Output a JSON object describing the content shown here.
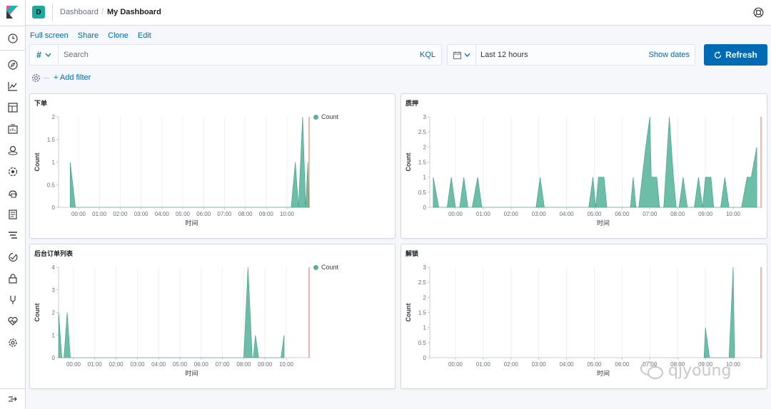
{
  "topbar": {
    "space_initial": "D",
    "breadcrumb_parent": "Dashboard",
    "breadcrumb_current": "My Dashboard"
  },
  "actions": [
    "Full screen",
    "Share",
    "Clone",
    "Edit"
  ],
  "query": {
    "type_label": "#",
    "placeholder": "Search",
    "language": "KQL"
  },
  "time": {
    "range": "Last 12 hours",
    "show_dates": "Show dates",
    "refresh_label": "Refresh"
  },
  "filters": {
    "add_label": "+ Add filter"
  },
  "accent_color": "#006bb4",
  "series_color": "#54b399",
  "nav_icons": [
    "clock-icon",
    "compass-icon",
    "visualize-icon",
    "dashboard-icon",
    "canvas-icon",
    "maps-icon",
    "ml-icon",
    "infrastructure-icon",
    "logs-icon",
    "apm-icon",
    "uptime-icon",
    "security-icon",
    "devtools-icon",
    "monitoring-icon",
    "management-icon",
    "collapse-icon"
  ],
  "watermark": "qjyoung",
  "chart_data": [
    {
      "title": "下单",
      "type": "area",
      "xlabel": "时间",
      "ylabel": "Count",
      "x_ticks": [
        "00:00",
        "01:00",
        "02:00",
        "03:00",
        "04:00",
        "05:00",
        "06:00",
        "07:00",
        "08:00",
        "09:00",
        "10:00"
      ],
      "y_ticks": [
        "0",
        "0.5",
        "1",
        "1.5",
        "2"
      ],
      "ylim": [
        0,
        2
      ],
      "legend": "Count",
      "series": [
        {
          "values": [
            [
              -0.4,
              1
            ],
            [
              -0.15,
              0
            ],
            [
              10.2,
              0
            ],
            [
              10.4,
              1
            ],
            [
              10.55,
              0
            ],
            [
              10.75,
              2
            ],
            [
              10.9,
              0
            ],
            [
              11.0,
              1
            ],
            [
              11.05,
              0
            ]
          ]
        }
      ]
    },
    {
      "title": "质押",
      "type": "area",
      "xlabel": "时间",
      "ylabel": "Count",
      "x_ticks": [
        "00:00",
        "01:00",
        "02:00",
        "03:00",
        "04:00",
        "05:00",
        "06:00",
        "07:00",
        "08:00",
        "09:00",
        "10:00"
      ],
      "y_ticks": [
        "0",
        "0.5",
        "1",
        "1.5",
        "2",
        "2.5",
        "3"
      ],
      "ylim": [
        0,
        3
      ],
      "legend": "",
      "series": [
        {
          "values": [
            [
              -0.8,
              1
            ],
            [
              -0.6,
              0
            ],
            [
              -0.3,
              0
            ],
            [
              -0.15,
              1
            ],
            [
              0,
              0
            ],
            [
              0.15,
              0
            ],
            [
              0.3,
              1
            ],
            [
              0.45,
              0
            ],
            [
              0.6,
              0
            ],
            [
              0.8,
              1
            ],
            [
              0.95,
              0
            ],
            [
              2.9,
              0
            ],
            [
              3.05,
              1
            ],
            [
              3.2,
              0
            ],
            [
              4.8,
              0
            ],
            [
              4.95,
              1
            ],
            [
              5.05,
              0
            ],
            [
              5.15,
              1
            ],
            [
              5.35,
              1
            ],
            [
              5.45,
              0
            ],
            [
              6.3,
              0
            ],
            [
              6.4,
              1
            ],
            [
              6.5,
              0
            ],
            [
              6.6,
              0
            ],
            [
              6.85,
              2
            ],
            [
              7.0,
              3
            ],
            [
              7.05,
              1
            ],
            [
              7.25,
              1
            ],
            [
              7.35,
              0
            ],
            [
              7.5,
              0
            ],
            [
              7.7,
              3
            ],
            [
              7.85,
              1
            ],
            [
              7.95,
              0
            ],
            [
              8.05,
              0
            ],
            [
              8.2,
              1
            ],
            [
              8.35,
              0
            ],
            [
              8.6,
              0
            ],
            [
              8.75,
              1
            ],
            [
              8.9,
              0
            ],
            [
              9.0,
              1
            ],
            [
              9.2,
              1
            ],
            [
              9.3,
              0
            ],
            [
              9.55,
              0
            ],
            [
              9.7,
              1
            ],
            [
              9.85,
              0
            ],
            [
              10.3,
              0
            ],
            [
              10.5,
              1
            ],
            [
              10.65,
              1
            ],
            [
              10.85,
              2
            ],
            [
              10.85,
              0
            ]
          ]
        }
      ]
    },
    {
      "title": "后台订单列表",
      "type": "area",
      "xlabel": "时间",
      "ylabel": "Count",
      "x_ticks": [
        "00:00",
        "01:00",
        "02:00",
        "03:00",
        "04:00",
        "05:00",
        "06:00",
        "07:00",
        "08:00",
        "09:00",
        "10:00"
      ],
      "y_ticks": [
        "0",
        "1",
        "2",
        "3",
        "4"
      ],
      "ylim": [
        0,
        4
      ],
      "legend": "Count",
      "series": [
        {
          "values": [
            [
              -0.7,
              2
            ],
            [
              -0.55,
              0
            ],
            [
              -0.45,
              0
            ],
            [
              -0.3,
              2
            ],
            [
              -0.15,
              0
            ],
            [
              8.0,
              0
            ],
            [
              8.2,
              4
            ],
            [
              8.4,
              0
            ],
            [
              8.45,
              0
            ],
            [
              8.55,
              1
            ],
            [
              8.7,
              0
            ],
            [
              9.75,
              0
            ],
            [
              9.9,
              1
            ],
            [
              9.9,
              0
            ]
          ]
        }
      ]
    },
    {
      "title": "解锁",
      "type": "area",
      "xlabel": "时间",
      "ylabel": "Count",
      "x_ticks": [
        "00:00",
        "01:00",
        "02:00",
        "03:00",
        "04:00",
        "05:00",
        "06:00",
        "07:00",
        "08:00",
        "09:00",
        "10:00"
      ],
      "y_ticks": [
        "0",
        "0.5",
        "1",
        "1.5",
        "2",
        "2.5",
        "3"
      ],
      "ylim": [
        0,
        3
      ],
      "legend": "",
      "series": [
        {
          "values": [
            [
              8.95,
              0
            ],
            [
              9.0,
              1
            ],
            [
              9.15,
              0
            ],
            [
              9.85,
              0
            ],
            [
              10.0,
              3
            ],
            [
              10.05,
              0
            ]
          ]
        }
      ]
    }
  ]
}
